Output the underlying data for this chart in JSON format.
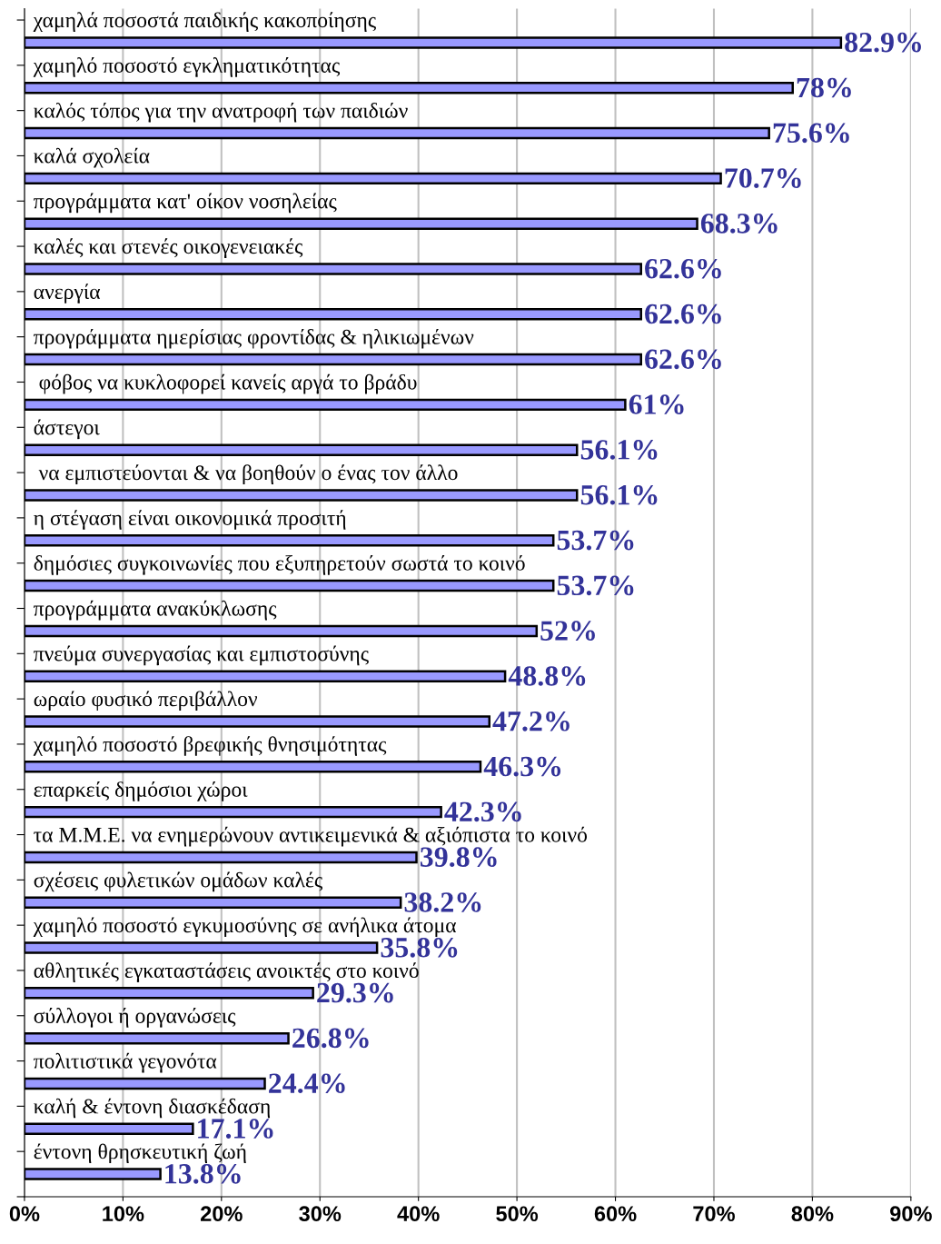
{
  "chart_data": {
    "type": "bar",
    "orientation": "horizontal",
    "categories": [
      "χαμηλά ποσοστά παιδικής κακοποίησης",
      "χαμηλό ποσοστό εγκληματικότητας",
      "καλός τόπος για την ανατροφή των παιδιών",
      "καλά σχολεία",
      "προγράμματα κατ' οίκον νοσηλείας",
      "καλές και στενές οικογενειακές",
      "ανεργία",
      "προγράμματα ημερίσιας φροντίδας & ηλικιωμένων",
      " φόβος να κυκλοφορεί κανείς αργά το βράδυ",
      "άστεγοι",
      " να εμπιστεύονται & να βοηθούν ο ένας τον άλλο",
      "η στέγαση είναι οικονομικά προσιτή",
      "δημόσιες συγκοινωνίες που εξυπηρετούν σωστά το κοινό",
      "προγράμματα ανακύκλωσης",
      "πνεύμα συνεργασίας και εμπιστοσύνης",
      "ωραίο φυσικό περιβάλλον",
      "χαμηλό ποσοστό βρεφικής θνησιμότητας",
      "επαρκείς δημόσιοι χώροι",
      "τα Μ.Μ.Ε. να ενημερώνουν αντικειμενικά & αξιόπιστα το κοινό",
      "σχέσεις φυλετικών ομάδων καλές",
      "χαμηλό ποσοστό εγκυμοσύνης σε ανήλικα άτομα",
      "αθλητικές εγκαταστάσεις ανοικτές στο κοινό",
      "σύλλογοι ή οργανώσεις",
      "πολιτιστικά γεγονότα",
      "καλή & έντονη διασκέδαση",
      "έντονη θρησκευτική ζωή"
    ],
    "values": [
      82.9,
      78,
      75.6,
      70.7,
      68.3,
      62.6,
      62.6,
      62.6,
      61,
      56.1,
      56.1,
      53.7,
      53.7,
      52,
      48.8,
      47.2,
      46.3,
      42.3,
      39.8,
      38.2,
      35.8,
      29.3,
      26.8,
      24.4,
      17.1,
      13.8
    ],
    "value_labels": [
      "82.9%",
      "78%",
      "75.6%",
      "70.7%",
      "68.3%",
      "62.6%",
      "62.6%",
      "62.6%",
      "61%",
      "56.1%",
      "56.1%",
      "53.7%",
      "53.7%",
      "52%",
      "48.8%",
      "47.2%",
      "46.3%",
      "42.3%",
      "39.8%",
      "38.2%",
      "35.8%",
      "29.3%",
      "26.8%",
      "24.4%",
      "17.1%",
      "13.8%"
    ],
    "color": "#9999ff",
    "xlim": [
      0,
      90
    ],
    "xticks": [
      {
        "value": 0,
        "label": "0%"
      },
      {
        "value": 10,
        "label": "10%"
      },
      {
        "value": 20,
        "label": "20%"
      },
      {
        "value": 30,
        "label": "30%"
      },
      {
        "value": 40,
        "label": "40%"
      },
      {
        "value": 50,
        "label": "50%"
      },
      {
        "value": 60,
        "label": "60%"
      },
      {
        "value": 70,
        "label": "70%"
      },
      {
        "value": 80,
        "label": "80%"
      },
      {
        "value": 90,
        "label": "90%"
      }
    ],
    "grid": "x"
  }
}
